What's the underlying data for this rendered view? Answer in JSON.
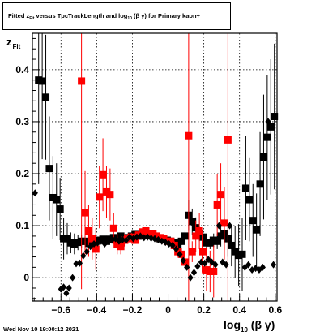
{
  "title": {
    "prefix": "Fitted  z",
    "sub1": "Fit",
    "mid": "  versus TpcTrackLength and log",
    "sub2": "10",
    "suffix": " (β γ) for Primary kaon+"
  },
  "y_axis_label": {
    "main": "z",
    "sub": "Fit"
  },
  "x_axis_label": {
    "main": "log",
    "sub": "10",
    "suffix": " (β γ)"
  },
  "timestamp": "Wed Nov 10 19:00:12 2021",
  "colors": {
    "black_series": "#000000",
    "red_series": "#ff0000",
    "frame": "#000000",
    "grid": "#000000"
  },
  "chart_data": {
    "type": "scatter",
    "xlim": [
      -0.76,
      0.61
    ],
    "ylim": [
      -0.045,
      0.47
    ],
    "grid": true,
    "x_ticks": [
      -0.6,
      -0.4,
      -0.2,
      0,
      0.2,
      0.4,
      0.6
    ],
    "x_tick_labels": [
      "−0.6",
      "−0.4",
      "−0.2",
      "0",
      "0.2",
      "0.4",
      "0.6"
    ],
    "y_ticks": [
      0,
      0.1,
      0.2,
      0.3,
      0.4
    ],
    "y_tick_labels": [
      "0",
      "0.1",
      "0.2",
      "0.3",
      "0.4"
    ],
    "series": [
      {
        "marker": "square",
        "color": "#000000",
        "points": [
          {
            "x": -0.725,
            "y": 0.38,
            "err": 0.2
          },
          {
            "x": -0.705,
            "y": 0.378,
            "err": 0.15
          },
          {
            "x": -0.685,
            "y": 0.347,
            "err": 0.12
          },
          {
            "x": -0.665,
            "y": 0.21,
            "err": 0.1
          },
          {
            "x": -0.645,
            "y": 0.154,
            "err": 0.08
          },
          {
            "x": -0.625,
            "y": 0.15,
            "err": 0.07
          },
          {
            "x": -0.605,
            "y": 0.132,
            "err": 0.06
          },
          {
            "x": -0.585,
            "y": 0.075,
            "err": 0.04
          },
          {
            "x": -0.565,
            "y": 0.075,
            "err": 0.03
          },
          {
            "x": -0.545,
            "y": 0.067,
            "err": 0.02
          },
          {
            "x": -0.525,
            "y": 0.065,
            "err": 0.02
          },
          {
            "x": -0.505,
            "y": 0.068,
            "err": 0.015
          },
          {
            "x": -0.485,
            "y": 0.07,
            "err": 0.012
          },
          {
            "x": -0.465,
            "y": 0.07,
            "err": 0.01
          },
          {
            "x": -0.445,
            "y": 0.066,
            "err": 0.01
          },
          {
            "x": -0.425,
            "y": 0.068,
            "err": 0.008
          },
          {
            "x": -0.405,
            "y": 0.07,
            "err": 0.008
          },
          {
            "x": -0.385,
            "y": 0.072,
            "err": 0.006
          },
          {
            "x": -0.365,
            "y": 0.074,
            "err": 0.006
          },
          {
            "x": -0.345,
            "y": 0.07,
            "err": 0.005
          },
          {
            "x": -0.325,
            "y": 0.074,
            "err": 0.005
          },
          {
            "x": -0.305,
            "y": 0.077,
            "err": 0.004
          },
          {
            "x": -0.285,
            "y": 0.076,
            "err": 0.004
          },
          {
            "x": -0.265,
            "y": 0.08,
            "err": 0.004
          },
          {
            "x": -0.245,
            "y": 0.074,
            "err": 0.004
          },
          {
            "x": -0.225,
            "y": 0.077,
            "err": 0.004
          },
          {
            "x": -0.205,
            "y": 0.08,
            "err": 0.004
          },
          {
            "x": -0.185,
            "y": 0.083,
            "err": 0.004
          },
          {
            "x": -0.165,
            "y": 0.08,
            "err": 0.004
          },
          {
            "x": -0.145,
            "y": 0.085,
            "err": 0.004
          },
          {
            "x": -0.125,
            "y": 0.082,
            "err": 0.004
          },
          {
            "x": -0.105,
            "y": 0.083,
            "err": 0.004
          },
          {
            "x": -0.085,
            "y": 0.08,
            "err": 0.004
          },
          {
            "x": -0.065,
            "y": 0.078,
            "err": 0.004
          },
          {
            "x": -0.045,
            "y": 0.075,
            "err": 0.004
          },
          {
            "x": -0.025,
            "y": 0.073,
            "err": 0.004
          },
          {
            "x": -0.005,
            "y": 0.072,
            "err": 0.004
          },
          {
            "x": 0.015,
            "y": 0.07,
            "err": 0.005
          },
          {
            "x": 0.035,
            "y": 0.068,
            "err": 0.005
          },
          {
            "x": 0.055,
            "y": 0.065,
            "err": 0.006
          },
          {
            "x": 0.075,
            "y": 0.07,
            "err": 0.007
          },
          {
            "x": 0.095,
            "y": 0.08,
            "err": 0.01
          },
          {
            "x": 0.115,
            "y": 0.12,
            "err": 0.03
          },
          {
            "x": 0.135,
            "y": 0.108,
            "err": 0.025
          },
          {
            "x": 0.155,
            "y": 0.096,
            "err": 0.02
          },
          {
            "x": 0.175,
            "y": 0.085,
            "err": 0.015
          },
          {
            "x": 0.195,
            "y": 0.078,
            "err": 0.013
          },
          {
            "x": 0.215,
            "y": 0.067,
            "err": 0.012
          },
          {
            "x": 0.235,
            "y": 0.067,
            "err": 0.012
          },
          {
            "x": 0.255,
            "y": 0.072,
            "err": 0.013
          },
          {
            "x": 0.275,
            "y": 0.07,
            "err": 0.015
          },
          {
            "x": 0.295,
            "y": 0.08,
            "err": 0.02
          },
          {
            "x": 0.315,
            "y": 0.085,
            "err": 0.03
          },
          {
            "x": 0.335,
            "y": 0.075,
            "err": 0.035
          },
          {
            "x": 0.355,
            "y": 0.062,
            "err": 0.04
          },
          {
            "x": 0.375,
            "y": 0.05,
            "err": 0.05
          },
          {
            "x": 0.395,
            "y": 0.043,
            "err": 0.06
          },
          {
            "x": 0.415,
            "y": 0.045,
            "err": 0.07
          },
          {
            "x": 0.435,
            "y": 0.172,
            "err": 0.1
          },
          {
            "x": 0.455,
            "y": 0.15,
            "err": 0.08
          },
          {
            "x": 0.475,
            "y": 0.11,
            "err": 0.07
          },
          {
            "x": 0.495,
            "y": 0.092,
            "err": 0.07
          },
          {
            "x": 0.515,
            "y": 0.18,
            "err": 0.1
          },
          {
            "x": 0.535,
            "y": 0.232,
            "err": 0.12
          },
          {
            "x": 0.555,
            "y": 0.27,
            "err": 0.12
          },
          {
            "x": 0.575,
            "y": 0.29,
            "err": 0.13
          },
          {
            "x": 0.595,
            "y": 0.31,
            "err": 0.14
          }
        ]
      },
      {
        "marker": "square",
        "color": "#ff0000",
        "points": [
          {
            "x": -0.485,
            "y": 0.378,
            "err": 0.4
          },
          {
            "x": -0.465,
            "y": 0.125,
            "err": 0.08
          },
          {
            "x": -0.445,
            "y": 0.09,
            "err": 0.05
          },
          {
            "x": -0.425,
            "y": 0.075,
            "err": 0.04
          },
          {
            "x": -0.405,
            "y": 0.055,
            "err": 0.04
          },
          {
            "x": -0.385,
            "y": 0.155,
            "err": 0.06
          },
          {
            "x": -0.365,
            "y": 0.198,
            "err": 0.07
          },
          {
            "x": -0.345,
            "y": 0.165,
            "err": 0.05
          },
          {
            "x": -0.325,
            "y": 0.16,
            "err": 0.05
          },
          {
            "x": -0.305,
            "y": 0.095,
            "err": 0.03
          },
          {
            "x": -0.285,
            "y": 0.065,
            "err": 0.02
          },
          {
            "x": -0.265,
            "y": 0.06,
            "err": 0.015
          },
          {
            "x": -0.245,
            "y": 0.072,
            "err": 0.012
          },
          {
            "x": -0.225,
            "y": 0.075,
            "err": 0.01
          },
          {
            "x": -0.205,
            "y": 0.078,
            "err": 0.008
          },
          {
            "x": -0.185,
            "y": 0.072,
            "err": 0.007
          },
          {
            "x": -0.165,
            "y": 0.082,
            "err": 0.006
          },
          {
            "x": -0.145,
            "y": 0.088,
            "err": 0.006
          },
          {
            "x": -0.125,
            "y": 0.09,
            "err": 0.006
          },
          {
            "x": -0.105,
            "y": 0.082,
            "err": 0.006
          },
          {
            "x": -0.085,
            "y": 0.085,
            "err": 0.006
          },
          {
            "x": -0.065,
            "y": 0.08,
            "err": 0.006
          },
          {
            "x": -0.045,
            "y": 0.077,
            "err": 0.006
          },
          {
            "x": -0.025,
            "y": 0.075,
            "err": 0.006
          },
          {
            "x": -0.005,
            "y": 0.07,
            "err": 0.006
          },
          {
            "x": 0.015,
            "y": 0.07,
            "err": 0.007
          },
          {
            "x": 0.035,
            "y": 0.062,
            "err": 0.008
          },
          {
            "x": 0.055,
            "y": 0.05,
            "err": 0.01
          },
          {
            "x": 0.075,
            "y": 0.045,
            "err": 0.012
          },
          {
            "x": 0.095,
            "y": 0.03,
            "err": 0.015
          },
          {
            "x": 0.115,
            "y": 0.273,
            "err": 0.45
          },
          {
            "x": 0.135,
            "y": 0.05,
            "err": 0.02
          },
          {
            "x": 0.155,
            "y": 0.08,
            "err": 0.03
          },
          {
            "x": 0.175,
            "y": 0.09,
            "err": 0.035
          },
          {
            "x": 0.195,
            "y": 0.05,
            "err": 0.04
          },
          {
            "x": 0.215,
            "y": 0.015,
            "err": 0.04
          },
          {
            "x": 0.235,
            "y": 0.012,
            "err": 0.04
          },
          {
            "x": 0.255,
            "y": 0.012,
            "err": 0.05
          },
          {
            "x": 0.275,
            "y": 0.14,
            "err": 0.06
          },
          {
            "x": 0.295,
            "y": 0.16,
            "err": 0.06
          },
          {
            "x": 0.315,
            "y": 0.105,
            "err": 0.07
          },
          {
            "x": 0.335,
            "y": 0.265,
            "err": 0.35
          }
        ]
      },
      {
        "marker": "diamond",
        "color": "#000000",
        "points": [
          {
            "x": -0.745,
            "y": 0.163
          },
          {
            "x": -0.6,
            "y": -0.022
          },
          {
            "x": -0.585,
            "y": -0.018
          },
          {
            "x": -0.57,
            "y": -0.03
          },
          {
            "x": -0.555,
            "y": -0.02
          },
          {
            "x": -0.535,
            "y": 0.0
          },
          {
            "x": -0.515,
            "y": 0.027
          },
          {
            "x": -0.495,
            "y": 0.028
          },
          {
            "x": -0.475,
            "y": 0.042
          },
          {
            "x": -0.455,
            "y": 0.05
          },
          {
            "x": -0.435,
            "y": 0.06
          },
          {
            "x": -0.415,
            "y": 0.065
          },
          {
            "x": -0.395,
            "y": 0.067
          },
          {
            "x": -0.375,
            "y": 0.07
          },
          {
            "x": -0.355,
            "y": 0.065
          },
          {
            "x": -0.335,
            "y": 0.07
          },
          {
            "x": -0.315,
            "y": 0.072
          },
          {
            "x": -0.295,
            "y": 0.075
          },
          {
            "x": -0.275,
            "y": 0.07
          },
          {
            "x": -0.255,
            "y": 0.073
          },
          {
            "x": -0.235,
            "y": 0.072
          },
          {
            "x": -0.215,
            "y": 0.078
          },
          {
            "x": -0.195,
            "y": 0.075
          },
          {
            "x": -0.175,
            "y": 0.078
          },
          {
            "x": -0.155,
            "y": 0.08
          },
          {
            "x": -0.135,
            "y": 0.077
          },
          {
            "x": -0.115,
            "y": 0.078
          },
          {
            "x": -0.095,
            "y": 0.076
          },
          {
            "x": -0.075,
            "y": 0.075
          },
          {
            "x": -0.055,
            "y": 0.073
          },
          {
            "x": -0.035,
            "y": 0.07
          },
          {
            "x": -0.015,
            "y": 0.068
          },
          {
            "x": 0.005,
            "y": 0.065
          },
          {
            "x": 0.025,
            "y": 0.062
          },
          {
            "x": 0.045,
            "y": 0.055
          },
          {
            "x": 0.065,
            "y": 0.045
          },
          {
            "x": 0.085,
            "y": 0.033
          },
          {
            "x": 0.105,
            "y": 0.02
          },
          {
            "x": 0.125,
            "y": 0.0
          },
          {
            "x": 0.145,
            "y": 0.01
          },
          {
            "x": 0.165,
            "y": 0.022
          },
          {
            "x": 0.185,
            "y": 0.03
          },
          {
            "x": 0.205,
            "y": 0.028
          },
          {
            "x": 0.225,
            "y": 0.035
          },
          {
            "x": 0.245,
            "y": 0.03
          },
          {
            "x": 0.265,
            "y": 0.025
          },
          {
            "x": 0.285,
            "y": 0.1
          },
          {
            "x": 0.305,
            "y": 0.03
          },
          {
            "x": 0.325,
            "y": 0.025
          },
          {
            "x": 0.345,
            "y": 0.1
          },
          {
            "x": 0.43,
            "y": 0.02
          },
          {
            "x": 0.45,
            "y": 0.025
          },
          {
            "x": 0.47,
            "y": 0.015
          },
          {
            "x": 0.49,
            "y": 0.018
          },
          {
            "x": 0.51,
            "y": 0.015
          },
          {
            "x": 0.53,
            "y": 0.02
          },
          {
            "x": 0.56,
            "y": 0.3
          },
          {
            "x": 0.59,
            "y": 0.025
          }
        ]
      }
    ]
  }
}
